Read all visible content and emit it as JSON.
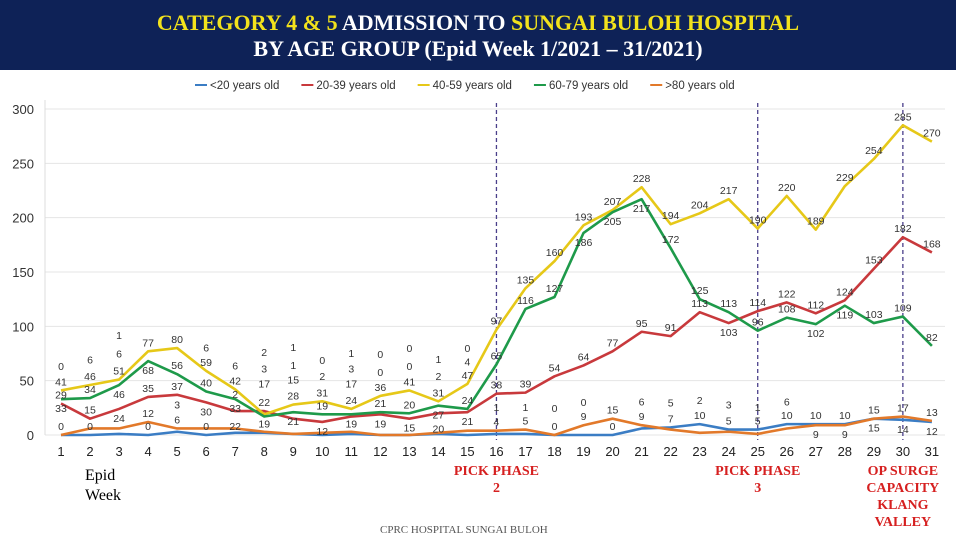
{
  "header": {
    "line1_a": "CATEGORY 4 & 5",
    "line1_b": " ADMISSION TO ",
    "line1_c": "SUNGAI BULOH HOSPITAL",
    "line2": "BY AGE GROUP (Epid Week 1/2021  –  31/2021)"
  },
  "chart_data": {
    "type": "line",
    "title": "CATEGORY 4 & 5 ADMISSION TO SUNGAI BULOH HOSPITAL BY AGE GROUP (Epid Week 1/2021 – 31/2021)",
    "xlabel": "Epid Week",
    "ylabel": "",
    "ylim": [
      0,
      300
    ],
    "yticks": [
      0,
      50,
      100,
      150,
      200,
      250,
      300
    ],
    "grid": true,
    "legend": "top",
    "x": [
      1,
      2,
      3,
      4,
      5,
      6,
      7,
      8,
      9,
      10,
      11,
      12,
      13,
      14,
      15,
      16,
      17,
      18,
      19,
      20,
      21,
      22,
      23,
      24,
      25,
      26,
      27,
      28,
      29,
      30,
      31
    ],
    "series": [
      {
        "name": "<20 years old",
        "color": "#3b7dc4",
        "values": [
          0,
          0,
          1,
          0,
          3,
          0,
          2,
          2,
          1,
          0,
          1,
          0,
          0,
          1,
          0,
          1,
          1,
          0,
          0,
          0,
          6,
          7,
          10,
          5,
          5,
          10,
          10,
          10,
          15,
          14,
          12
        ]
      },
      {
        "name": "20-39 years old",
        "color": "#c8393c",
        "values": [
          29,
          15,
          24,
          35,
          37,
          30,
          22,
          22,
          15,
          12,
          17,
          19,
          15,
          20,
          21,
          38,
          39,
          54,
          64,
          77,
          95,
          91,
          113,
          103,
          114,
          122,
          112,
          124,
          153,
          182,
          168
        ]
      },
      {
        "name": "40-59 years old",
        "color": "#e6c818",
        "values": [
          41,
          46,
          51,
          77,
          80,
          59,
          42,
          19,
          28,
          31,
          24,
          36,
          41,
          31,
          47,
          97,
          135,
          160,
          193,
          207,
          228,
          194,
          204,
          217,
          190,
          220,
          189,
          229,
          254,
          285,
          270
        ]
      },
      {
        "name": "60-79 years old",
        "color": "#1e9a4a",
        "values": [
          33,
          34,
          46,
          68,
          56,
          40,
          33,
          17,
          21,
          19,
          19,
          21,
          20,
          27,
          24,
          65,
          116,
          127,
          186,
          205,
          217,
          172,
          125,
          113,
          96,
          108,
          102,
          119,
          103,
          109,
          82
        ]
      },
      {
        "name": ">80 years old",
        "color": "#e2792a",
        "values": [
          0,
          6,
          6,
          12,
          6,
          6,
          6,
          3,
          1,
          2,
          3,
          0,
          0,
          2,
          4,
          4,
          5,
          0,
          9,
          15,
          9,
          5,
          2,
          3,
          1,
          6,
          9,
          9,
          15,
          17,
          13
        ]
      }
    ],
    "markers": [
      {
        "week": 16,
        "label": "PICK PHASE 2"
      },
      {
        "week": 25,
        "label": "PICK PHASE 3"
      },
      {
        "week": 30,
        "label": "OP SURGE CAPACITY KLANG VALLEY"
      }
    ]
  },
  "epid_label": "Epid Week",
  "footer": "CPRC HOSPITAL SUNGAI BULOH"
}
